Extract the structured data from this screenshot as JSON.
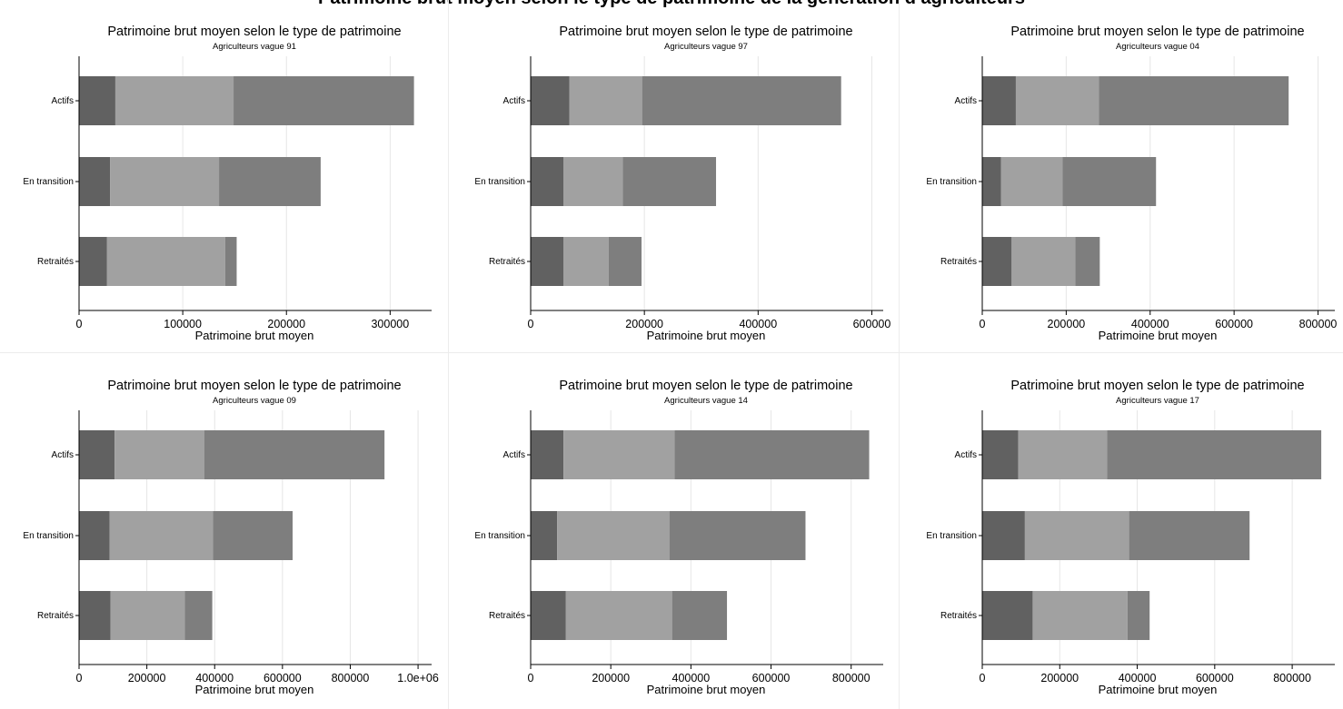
{
  "figure_title": "Patrimoine brut moyen selon le type de patrimoine de la génération d’agriculteurs",
  "colors": {
    "segment_1": "#616161",
    "segment_2": "#a1a1a1",
    "segment_3": "#7e7e7e",
    "grid": "#e6e6e6",
    "axis": "#000000"
  },
  "chart_data": [
    {
      "type": "bar",
      "orientation": "horizontal",
      "stacked": true,
      "title": "Patrimoine brut moyen selon le type de patrimoine",
      "subtitle": "Agriculteurs vague 91",
      "xlabel": "Patrimoine brut moyen",
      "categories": [
        "Actifs",
        "En transition",
        "Retraités"
      ],
      "xlim": [
        0,
        340000
      ],
      "xticks": [
        0,
        100000,
        200000,
        300000
      ],
      "xtick_labels": [
        "0",
        "100000",
        "200000",
        "300000"
      ],
      "series": [
        {
          "values": [
            35000,
            30000,
            27000
          ]
        },
        {
          "values": [
            114000,
            105000,
            114000
          ]
        },
        {
          "values": [
            174000,
            98000,
            11000
          ]
        }
      ]
    },
    {
      "type": "bar",
      "orientation": "horizontal",
      "stacked": true,
      "title": "Patrimoine brut moyen selon le type de patrimoine",
      "subtitle": "Agriculteurs vague 97",
      "xlabel": "Patrimoine brut moyen",
      "categories": [
        "Actifs",
        "En transition",
        "Retraités"
      ],
      "xlim": [
        0,
        620000
      ],
      "xticks": [
        0,
        200000,
        400000,
        600000
      ],
      "xtick_labels": [
        "0",
        "200000",
        "400000",
        "600000"
      ],
      "series": [
        {
          "values": [
            68000,
            58000,
            58000
          ]
        },
        {
          "values": [
            128000,
            104000,
            79000
          ]
        },
        {
          "values": [
            350000,
            164000,
            58000
          ]
        }
      ]
    },
    {
      "type": "bar",
      "orientation": "horizontal",
      "stacked": true,
      "title": "Patrimoine brut moyen selon le type de patrimoine",
      "subtitle": "Agriculteurs vague 04",
      "xlabel": "Patrimoine brut moyen",
      "categories": [
        "Actifs",
        "En transition",
        "Retraités"
      ],
      "xlim": [
        0,
        840000
      ],
      "xticks": [
        0,
        200000,
        400000,
        600000,
        800000
      ],
      "xtick_labels": [
        "0",
        "200000",
        "400000",
        "600000",
        "800000"
      ],
      "series": [
        {
          "values": [
            80000,
            45000,
            70000
          ]
        },
        {
          "values": [
            198000,
            146000,
            152000
          ]
        },
        {
          "values": [
            452000,
            223000,
            58000
          ]
        }
      ]
    },
    {
      "type": "bar",
      "orientation": "horizontal",
      "stacked": true,
      "title": "Patrimoine brut moyen selon le type de patrimoine",
      "subtitle": "Agriculteurs vague 09",
      "xlabel": "Patrimoine brut moyen",
      "categories": [
        "Actifs",
        "En transition",
        "Retraités"
      ],
      "xlim": [
        0,
        1040000
      ],
      "xticks": [
        0,
        200000,
        400000,
        600000,
        800000,
        1000000
      ],
      "xtick_labels": [
        "0",
        "200000",
        "400000",
        "600000",
        "800000",
        "1.0e+06"
      ],
      "series": [
        {
          "values": [
            105000,
            90000,
            93000
          ]
        },
        {
          "values": [
            264000,
            305000,
            219000
          ]
        },
        {
          "values": [
            532000,
            235000,
            81000
          ]
        }
      ]
    },
    {
      "type": "bar",
      "orientation": "horizontal",
      "stacked": true,
      "title": "Patrimoine brut moyen selon le type de patrimoine",
      "subtitle": "Agriculteurs vague 14",
      "xlabel": "Patrimoine brut moyen",
      "categories": [
        "Actifs",
        "En transition",
        "Retraités"
      ],
      "xlim": [
        0,
        880000
      ],
      "xticks": [
        0,
        200000,
        400000,
        600000,
        800000
      ],
      "xtick_labels": [
        "0",
        "200000",
        "400000",
        "600000",
        "800000"
      ],
      "series": [
        {
          "values": [
            82000,
            66000,
            88000
          ]
        },
        {
          "values": [
            277000,
            281000,
            265000
          ]
        },
        {
          "values": [
            486000,
            339000,
            137000
          ]
        }
      ]
    },
    {
      "type": "bar",
      "orientation": "horizontal",
      "stacked": true,
      "title": "Patrimoine brut moyen selon le type de patrimoine",
      "subtitle": "Agriculteurs vague 17",
      "xlabel": "Patrimoine brut moyen",
      "categories": [
        "Actifs",
        "En transition",
        "Retraités"
      ],
      "xlim": [
        0,
        910000
      ],
      "xticks": [
        0,
        200000,
        400000,
        600000,
        800000
      ],
      "xtick_labels": [
        "0",
        "200000",
        "400000",
        "600000",
        "800000"
      ],
      "series": [
        {
          "values": [
            93000,
            110000,
            130000
          ]
        },
        {
          "values": [
            229000,
            269000,
            245000
          ]
        },
        {
          "values": [
            553000,
            311000,
            57000
          ]
        }
      ]
    }
  ]
}
